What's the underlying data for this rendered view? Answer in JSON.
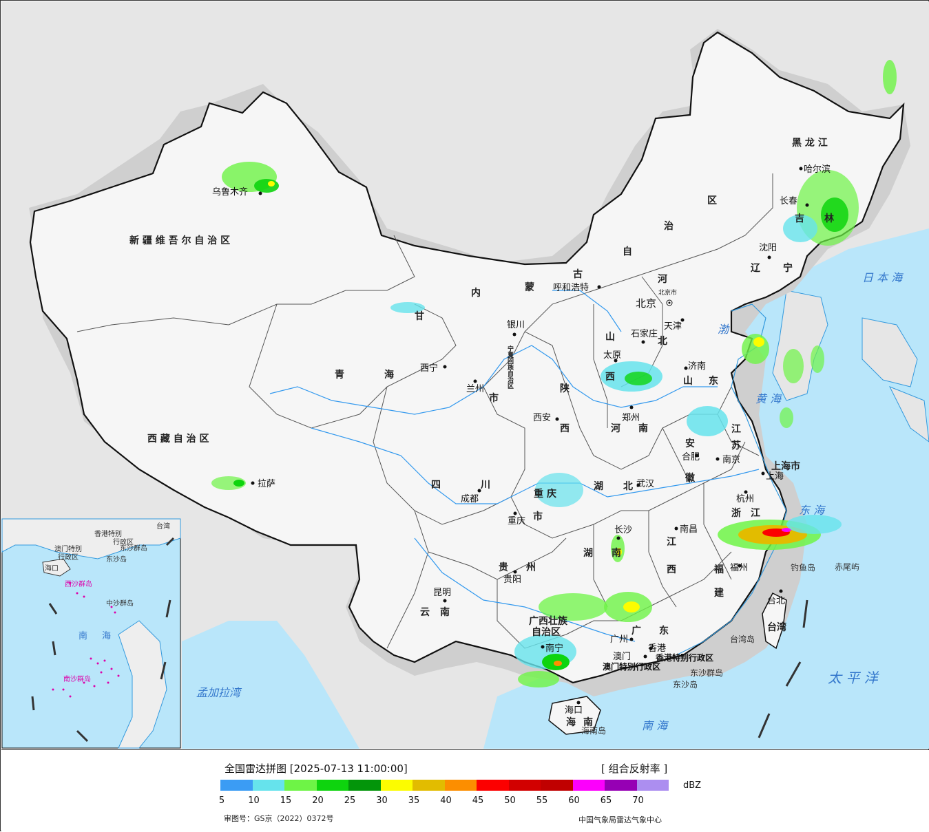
{
  "map": {
    "provinces": [
      {
        "text": "新 疆 维 吾 尔 自 治 区"
      },
      {
        "text": "西 藏 自 治 区"
      },
      {
        "text": "青"
      },
      {
        "text": "海"
      },
      {
        "text": "甘"
      },
      {
        "text": "内"
      },
      {
        "text": "蒙"
      },
      {
        "text": "古"
      },
      {
        "text": "自"
      },
      {
        "text": "治"
      },
      {
        "text": "区"
      },
      {
        "text": "黑 龙 江"
      },
      {
        "text": "吉"
      },
      {
        "text": "林"
      },
      {
        "text": "辽"
      },
      {
        "text": "宁"
      },
      {
        "text": "河"
      },
      {
        "text": "北"
      },
      {
        "text": "山"
      },
      {
        "text": "西"
      },
      {
        "text": "山"
      },
      {
        "text": "东"
      },
      {
        "text": "陕"
      },
      {
        "text": "西"
      },
      {
        "text": "河"
      },
      {
        "text": "南"
      },
      {
        "text": "江"
      },
      {
        "text": "苏"
      },
      {
        "text": "安"
      },
      {
        "text": "徽"
      },
      {
        "text": "上海市"
      },
      {
        "text": "浙"
      },
      {
        "text": "江"
      },
      {
        "text": "湖"
      },
      {
        "text": "北"
      },
      {
        "text": "四"
      },
      {
        "text": "川"
      },
      {
        "text": "重"
      },
      {
        "text": "庆"
      },
      {
        "text": "市"
      },
      {
        "text": "湖"
      },
      {
        "text": "南"
      },
      {
        "text": "江"
      },
      {
        "text": "西"
      },
      {
        "text": "福"
      },
      {
        "text": "建"
      },
      {
        "text": "贵"
      },
      {
        "text": "州"
      },
      {
        "text": "云"
      },
      {
        "text": "南"
      },
      {
        "text": "广西壮族"
      },
      {
        "text": "自治区"
      },
      {
        "text": "广"
      },
      {
        "text": "东"
      },
      {
        "text": "台湾"
      },
      {
        "text": "海"
      },
      {
        "text": "南"
      },
      {
        "text": "甘"
      },
      {
        "text": "肃"
      },
      {
        "text": "宁夏回族自治区"
      },
      {
        "text": "市"
      }
    ],
    "cities": [
      {
        "name": "乌鲁木齐"
      },
      {
        "name": "拉萨"
      },
      {
        "name": "西宁"
      },
      {
        "name": "兰州"
      },
      {
        "name": "银川"
      },
      {
        "name": "呼和浩特"
      },
      {
        "name": "北京"
      },
      {
        "name": "天津"
      },
      {
        "name": "石家庄"
      },
      {
        "name": "太原"
      },
      {
        "name": "济南"
      },
      {
        "name": "郑州"
      },
      {
        "name": "西安"
      },
      {
        "name": "合肥"
      },
      {
        "name": "南京"
      },
      {
        "name": "上海"
      },
      {
        "name": "杭州"
      },
      {
        "name": "武汉"
      },
      {
        "name": "成都"
      },
      {
        "name": "重庆"
      },
      {
        "name": "长沙"
      },
      {
        "name": "南昌"
      },
      {
        "name": "福州"
      },
      {
        "name": "贵阳"
      },
      {
        "name": "昆明"
      },
      {
        "name": "南宁"
      },
      {
        "name": "广州"
      },
      {
        "name": "香港"
      },
      {
        "name": "澳门"
      },
      {
        "name": "海口"
      },
      {
        "name": "台北"
      },
      {
        "name": "哈尔滨"
      },
      {
        "name": "长春"
      },
      {
        "name": "沈阳"
      }
    ],
    "seas": [
      {
        "text": "日 本 海"
      },
      {
        "text": "渤"
      },
      {
        "text": "海"
      },
      {
        "text": "黄 海"
      },
      {
        "text": "东 海"
      },
      {
        "text": "太 平 洋"
      },
      {
        "text": "南 海"
      },
      {
        "text": "孟加拉湾"
      }
    ],
    "special": [
      {
        "text": "香港特别行政区"
      },
      {
        "text": "澳门特别行政区"
      },
      {
        "text": "东沙群岛"
      },
      {
        "text": "东沙岛"
      },
      {
        "text": "钓鱼岛"
      },
      {
        "text": "赤尾屿"
      },
      {
        "text": "台湾岛"
      },
      {
        "text": "海南岛"
      },
      {
        "text": "北京市"
      }
    ],
    "inset": {
      "labels": [
        {
          "text": "香港特别"
        },
        {
          "text": "行政区"
        },
        {
          "text": "澳门特别"
        },
        {
          "text": "行政区"
        },
        {
          "text": "东沙群岛"
        },
        {
          "text": "东沙岛"
        },
        {
          "text": "海口"
        },
        {
          "text": "西沙群岛"
        },
        {
          "text": "中沙群岛"
        },
        {
          "text": "南"
        },
        {
          "text": "海"
        },
        {
          "text": "南沙群岛"
        },
        {
          "text": "台湾"
        }
      ]
    }
  },
  "legend": {
    "title": "全国雷达拼图 [2025-07-13 11:00:00]",
    "product": "[ 组合反射率 ]",
    "unit": "dBZ",
    "colors": [
      "#3b9cf4",
      "#66e3ec",
      "#6ef446",
      "#0ed40e",
      "#03950a",
      "#fcfc00",
      "#e2bc00",
      "#fc8e00",
      "#fc0000",
      "#d20000",
      "#c00000",
      "#fc00fc",
      "#9600b4",
      "#ac8ef0"
    ],
    "ticks": [
      "5",
      "10",
      "15",
      "20",
      "25",
      "30",
      "35",
      "40",
      "45",
      "50",
      "55",
      "60",
      "65",
      "70"
    ],
    "approval": "审图号：GS京（2022）0372号",
    "organization": "中国气象局雷达气象中心"
  }
}
